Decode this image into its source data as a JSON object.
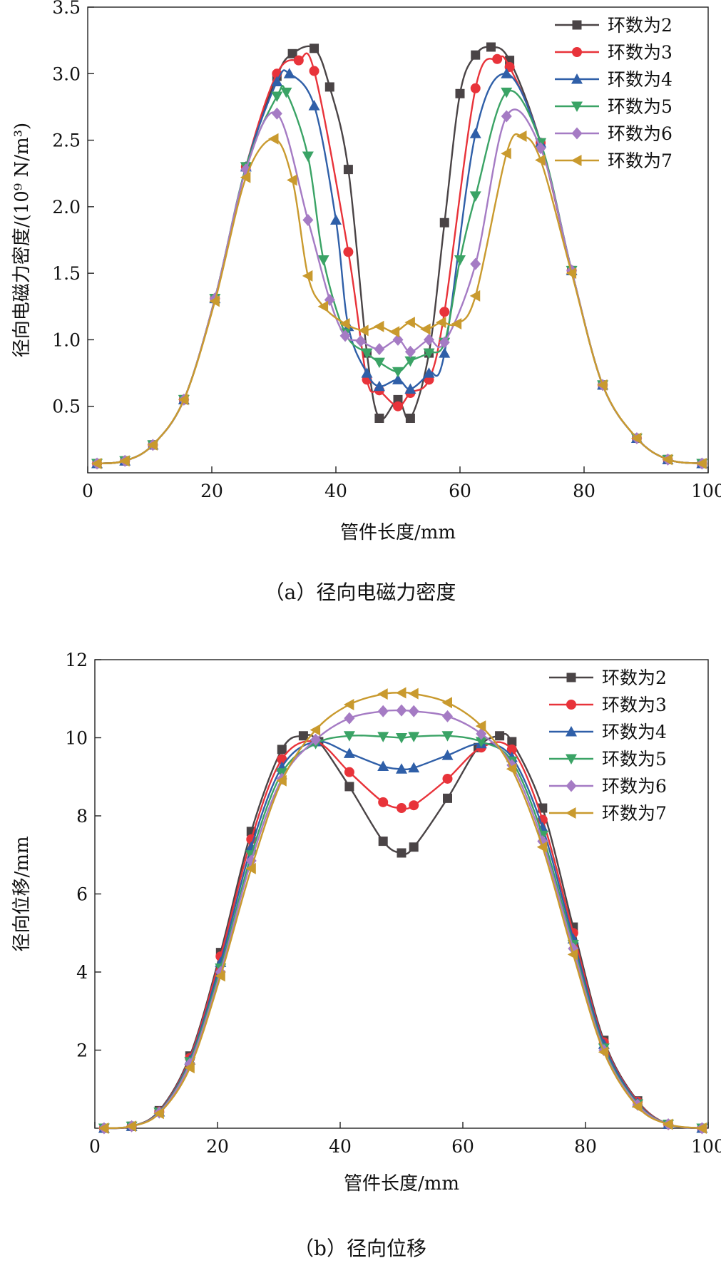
{
  "chart_data": [
    {
      "type": "line",
      "caption": "（a）径向电磁力密度",
      "xlabel": "管件长度/mm",
      "ylabel": "径向电磁力密度/(10⁹ N/m³)",
      "xlim": [
        0,
        100
      ],
      "ylim": [
        0,
        3.5
      ],
      "xticks": [
        0,
        20,
        40,
        60,
        80,
        100
      ],
      "yticks": [
        0.5,
        1.0,
        1.5,
        2.0,
        2.5,
        3.0,
        3.5
      ],
      "ytick_labels": [
        "0.5",
        "1.0",
        "1.5",
        "2.0",
        "2.5",
        "3.0",
        "3.5"
      ],
      "legend_position": "top-right",
      "series": [
        {
          "name": "环数为2",
          "color": "#4a4446",
          "marker": "square",
          "x": [
            1.5,
            6,
            10.5,
            15.5,
            20.5,
            25.5,
            30.5,
            33,
            36.5,
            39,
            42,
            45,
            47,
            50,
            52,
            55,
            57.5,
            60,
            62.5,
            65,
            68,
            73,
            78,
            83,
            88.5,
            93.5,
            99
          ],
          "y": [
            0.07,
            0.09,
            0.21,
            0.55,
            1.31,
            2.3,
            2.98,
            3.15,
            3.19,
            2.9,
            2.28,
            0.9,
            0.41,
            0.55,
            0.41,
            0.9,
            1.88,
            2.85,
            3.14,
            3.2,
            3.1,
            2.48,
            1.52,
            0.66,
            0.26,
            0.1,
            0.07
          ]
        },
        {
          "name": "环数为3",
          "color": "#e8333a",
          "marker": "circle",
          "x": [
            1.5,
            6,
            10.5,
            15.5,
            20.5,
            25.5,
            30.5,
            34,
            36.5,
            42,
            45,
            47,
            50,
            52,
            55,
            57.5,
            62.5,
            66,
            68,
            73,
            78,
            83,
            88.5,
            93.5,
            99
          ],
          "y": [
            0.07,
            0.09,
            0.21,
            0.55,
            1.31,
            2.3,
            3.0,
            3.1,
            3.02,
            1.66,
            0.7,
            0.62,
            0.5,
            0.6,
            0.7,
            1.21,
            2.89,
            3.11,
            3.05,
            2.48,
            1.52,
            0.66,
            0.26,
            0.1,
            0.07
          ]
        },
        {
          "name": "环数为4",
          "color": "#2f5fa8",
          "marker": "triangle-up",
          "x": [
            1.5,
            6,
            10.5,
            15.5,
            20.5,
            25.5,
            30.5,
            32.5,
            36.5,
            40,
            42,
            45,
            47,
            50,
            52,
            55,
            57.5,
            62.5,
            67.5,
            73,
            78,
            83,
            88.5,
            93.5,
            99
          ],
          "y": [
            0.07,
            0.09,
            0.21,
            0.55,
            1.31,
            2.3,
            2.94,
            3.0,
            2.76,
            1.9,
            1.1,
            0.75,
            0.65,
            0.7,
            0.63,
            0.75,
            0.9,
            2.55,
            3.0,
            2.48,
            1.52,
            0.66,
            0.26,
            0.1,
            0.07
          ]
        },
        {
          "name": "环数为5",
          "color": "#3aa365",
          "marker": "triangle-down",
          "x": [
            1.5,
            6,
            10.5,
            15.5,
            20.5,
            25.5,
            30.5,
            32,
            35.5,
            38,
            41.5,
            45,
            47,
            50,
            52,
            55,
            57.5,
            60,
            62.5,
            67.5,
            73,
            78,
            83,
            88.5,
            93.5,
            99
          ],
          "y": [
            0.07,
            0.09,
            0.21,
            0.55,
            1.31,
            2.3,
            2.83,
            2.86,
            2.38,
            1.6,
            1.05,
            0.9,
            0.83,
            0.76,
            0.84,
            0.9,
            0.98,
            1.6,
            2.08,
            2.86,
            2.48,
            1.52,
            0.66,
            0.26,
            0.1,
            0.07
          ]
        },
        {
          "name": "环数为6",
          "color": "#a57bc4",
          "marker": "diamond",
          "x": [
            1.5,
            6,
            10.5,
            15.5,
            20.5,
            25.5,
            30.5,
            35.5,
            39,
            41.5,
            44,
            47,
            50,
            52,
            55,
            57.5,
            62.5,
            67.5,
            73,
            78,
            83,
            88.5,
            93.5,
            99
          ],
          "y": [
            0.07,
            0.09,
            0.21,
            0.55,
            1.31,
            2.28,
            2.7,
            1.9,
            1.3,
            1.03,
            0.99,
            0.93,
            1.0,
            0.91,
            1.0,
            0.98,
            1.57,
            2.68,
            2.44,
            1.52,
            0.66,
            0.26,
            0.1,
            0.07
          ]
        },
        {
          "name": "环数为7",
          "color": "#c99a2e",
          "marker": "triangle-left",
          "x": [
            1.5,
            6,
            10.5,
            15.5,
            20.5,
            25.5,
            30,
            33,
            35.5,
            38,
            41.5,
            44.5,
            47,
            49.5,
            52,
            54.5,
            57,
            59.5,
            62.5,
            67.5,
            70,
            73,
            78,
            83,
            88.5,
            93.5,
            99
          ],
          "y": [
            0.07,
            0.09,
            0.21,
            0.55,
            1.29,
            2.22,
            2.51,
            2.2,
            1.48,
            1.25,
            1.12,
            1.07,
            1.1,
            1.06,
            1.13,
            1.08,
            1.13,
            1.12,
            1.33,
            2.4,
            2.53,
            2.35,
            1.5,
            0.66,
            0.26,
            0.1,
            0.07
          ]
        }
      ]
    },
    {
      "type": "line",
      "caption": "（b）径向位移",
      "xlabel": "管件长度/mm",
      "ylabel": "径向位移/mm",
      "xlim": [
        0,
        100
      ],
      "ylim": [
        0,
        12
      ],
      "xticks": [
        0,
        20,
        40,
        60,
        80,
        100
      ],
      "yticks": [
        2,
        4,
        6,
        8,
        10,
        12
      ],
      "ytick_labels": [
        "2",
        "4",
        "6",
        "8",
        "10",
        "12"
      ],
      "legend_position": "top-right",
      "series": [
        {
          "name": "环数为2",
          "color": "#4a4446",
          "marker": "square",
          "x": [
            1.5,
            6,
            10.5,
            15.5,
            20.5,
            25.5,
            30.5,
            34,
            36.5,
            41.5,
            47,
            50,
            52,
            57.5,
            62.5,
            66,
            68,
            73,
            78,
            83,
            88.5,
            93.5,
            99
          ],
          "y": [
            0,
            0.05,
            0.45,
            1.85,
            4.5,
            7.6,
            9.7,
            10.05,
            9.9,
            8.75,
            7.35,
            7.05,
            7.2,
            8.45,
            9.75,
            10.05,
            9.9,
            8.2,
            5.15,
            2.25,
            0.7,
            0.1,
            0
          ]
        },
        {
          "name": "环数为3",
          "color": "#e8333a",
          "marker": "circle",
          "x": [
            1.5,
            6,
            10.5,
            15.5,
            20.5,
            25.5,
            30.5,
            36,
            41.5,
            47,
            50,
            52,
            57.5,
            63,
            68,
            73,
            78,
            83,
            88.5,
            93.5,
            99
          ],
          "y": [
            0,
            0.05,
            0.43,
            1.8,
            4.4,
            7.4,
            9.45,
            9.9,
            9.12,
            8.35,
            8.2,
            8.27,
            8.95,
            9.75,
            9.7,
            7.9,
            5.0,
            2.2,
            0.68,
            0.1,
            0
          ]
        },
        {
          "name": "环数为4",
          "color": "#2f5fa8",
          "marker": "triangle-up",
          "x": [
            1.5,
            6,
            10.5,
            15.5,
            20.5,
            25.5,
            30.5,
            36,
            41.5,
            47,
            50,
            52,
            57.5,
            63,
            68,
            73,
            78,
            83,
            88.5,
            93.5,
            99
          ],
          "y": [
            0,
            0.05,
            0.42,
            1.75,
            4.25,
            7.2,
            9.25,
            9.9,
            9.6,
            9.27,
            9.2,
            9.23,
            9.55,
            9.85,
            9.5,
            7.7,
            4.85,
            2.15,
            0.65,
            0.1,
            0
          ]
        },
        {
          "name": "环数为5",
          "color": "#3aa365",
          "marker": "triangle-down",
          "x": [
            1.5,
            6,
            10.5,
            15.5,
            20.5,
            25.5,
            30.5,
            36,
            41.5,
            47,
            50,
            52,
            57.5,
            63,
            68,
            73,
            78,
            83,
            88.5,
            93.5,
            99
          ],
          "y": [
            0,
            0.05,
            0.41,
            1.7,
            4.1,
            7.0,
            9.1,
            9.85,
            10.05,
            10.03,
            10.0,
            10.03,
            10.05,
            9.9,
            9.4,
            7.5,
            4.7,
            2.05,
            0.62,
            0.1,
            0
          ]
        },
        {
          "name": "环数为6",
          "color": "#a57bc4",
          "marker": "diamond",
          "x": [
            1.5,
            6,
            10.5,
            15.5,
            20.5,
            25.5,
            30.5,
            36,
            41.5,
            47,
            50,
            52,
            57.5,
            63,
            68,
            73,
            78,
            83,
            88.5,
            93.5,
            99
          ],
          "y": [
            0,
            0.05,
            0.4,
            1.65,
            4.0,
            6.85,
            8.95,
            9.95,
            10.5,
            10.68,
            10.7,
            10.68,
            10.55,
            10.1,
            9.3,
            7.35,
            4.6,
            2.0,
            0.6,
            0.1,
            0
          ]
        },
        {
          "name": "环数为7",
          "color": "#c99a2e",
          "marker": "triangle-left",
          "x": [
            1.5,
            6,
            10.5,
            15.5,
            20.5,
            25.5,
            30.5,
            36,
            41.5,
            47,
            50,
            52,
            57.5,
            63,
            68,
            73,
            78,
            83,
            88.5,
            93.5,
            99
          ],
          "y": [
            0,
            0.05,
            0.38,
            1.55,
            3.9,
            6.65,
            8.9,
            10.2,
            10.85,
            11.12,
            11.15,
            11.13,
            10.9,
            10.3,
            9.2,
            7.2,
            4.45,
            1.95,
            0.55,
            0.1,
            0
          ]
        }
      ]
    }
  ]
}
